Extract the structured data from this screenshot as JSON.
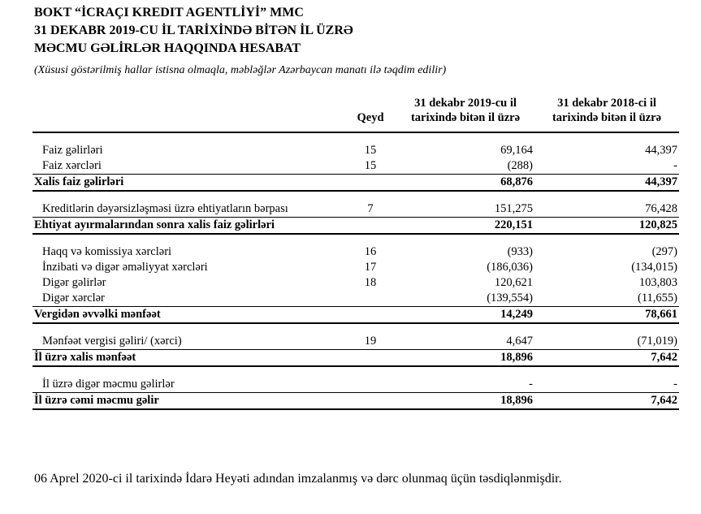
{
  "header": {
    "title": [
      "BOKT “İCRAÇI KREDIT AGENTLİYİ” MMC",
      "31 DEKABR 2019-CU İL TARİXİNDƏ BİTƏN İL ÜZRƏ",
      "MƏCMU GƏLİRLƏR HAQQINDA HESABAT"
    ],
    "subtitle": "(Xüsusi göstərilmiş hallar istisna olmaqla, məbləğlər Azərbaycan manatı ilə təqdim edilir)"
  },
  "table": {
    "columns": {
      "note": "Qeyd",
      "y2019": [
        "31 dekabr 2019-cu il",
        "tarixində bitən il üzrə"
      ],
      "y2018": [
        "31 dekabr 2018-ci il",
        "tarixində bitən il üzrə"
      ]
    },
    "groups": [
      {
        "rows": [
          {
            "label": "Faiz gəlirləri",
            "note": "15",
            "y2019": "69,164",
            "y2018": "44,397"
          },
          {
            "label": "Faiz xərcləri",
            "note": "15",
            "y2019": "(288)",
            "y2018": "-"
          },
          {
            "label": "Xalis faiz gəlirləri",
            "y2019": "68,876",
            "y2018": "44,397",
            "bold": true
          }
        ]
      },
      {
        "rows": [
          {
            "label": "Kreditlərin dəyərsizləşməsi üzrə ehtiyatların bərpası",
            "note": "7",
            "y2019": "151,275",
            "y2018": "76,428"
          },
          {
            "label": "Ehtiyat ayırmalarından sonra xalis faiz gəlirləri",
            "y2019": "220,151",
            "y2018": "120,825",
            "bold": true
          }
        ]
      },
      {
        "rows": [
          {
            "label": "Haqq və komissiya xərcləri",
            "note": "16",
            "y2019": "(933)",
            "y2018": "(297)"
          },
          {
            "label": "İnzibati və digər əməliyyat xərcləri",
            "note": "17",
            "y2019": "(186,036)",
            "y2018": "(134,015)"
          },
          {
            "label": "Digər gəlirlər",
            "note": "18",
            "y2019": "120,621",
            "y2018": "103,803"
          },
          {
            "label": "Digər xərclər",
            "y2019": "(139,554)",
            "y2018": "(11,655)"
          },
          {
            "label": "Vergidən əvvəlki mənfəət",
            "y2019": "14,249",
            "y2018": "78,661",
            "bold": true
          }
        ]
      },
      {
        "rows": [
          {
            "label": "Mənfəət vergisi gəliri/ (xərci)",
            "note": "19",
            "y2019": "4,647",
            "y2018": "(71,019)"
          },
          {
            "label": "İl üzrə xalis mənfəət",
            "y2019": "18,896",
            "y2018": "7,642",
            "bold": true
          }
        ]
      },
      {
        "rows": [
          {
            "label": "İl üzrə digər məcmu gəlirlər",
            "y2019": "-",
            "y2018": "-"
          },
          {
            "label": "İl üzrə cəmi məcmu gəlir",
            "y2019": "18,896",
            "y2018": "7,642",
            "bold": true
          }
        ]
      }
    ]
  },
  "footer": "06 Aprel 2020-ci il tarixində İdarə Heyəti adından imzalanmış və dərc olunmaq üçün təsdiqlənmişdir."
}
